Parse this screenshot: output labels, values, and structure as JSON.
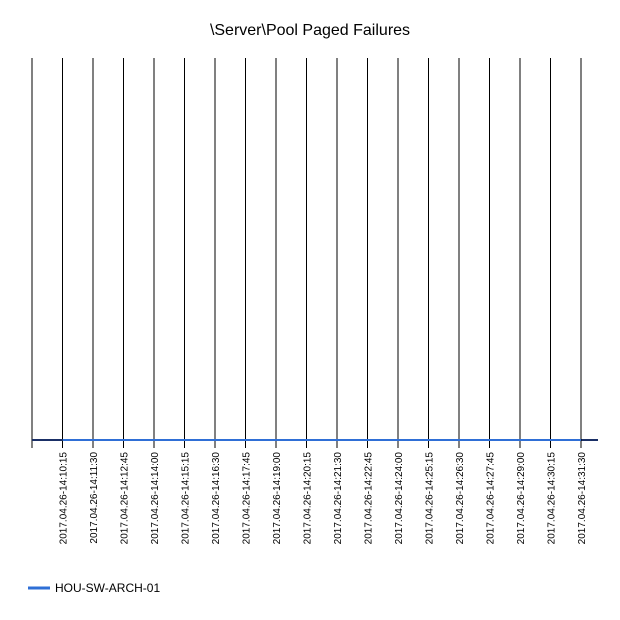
{
  "chart_data": {
    "type": "line",
    "title": "\\Server\\Pool Paged Failures",
    "categories": [
      "2017.04.26-14:10:15",
      "2017.04.26-14:11:30",
      "2017.04.26-14:12:45",
      "2017.04.26-14:14:00",
      "2017.04.26-14:15:15",
      "2017.04.26-14:16:30",
      "2017.04.26-14:17:45",
      "2017.04.26-14:19:00",
      "2017.04.26-14:20:15",
      "2017.04.26-14:21:30",
      "2017.04.26-14:22:45",
      "2017.04.26-14:24:00",
      "2017.04.26-14:25:15",
      "2017.04.26-14:26:30",
      "2017.04.26-14:27:45",
      "2017.04.26-14:29:00",
      "2017.04.26-14:30:15",
      "2017.04.26-14:31:30"
    ],
    "series": [
      {
        "name": "HOU-SW-ARCH-01",
        "color": "#2f6fd6",
        "values": [
          0,
          0,
          0,
          0,
          0,
          0,
          0,
          0,
          0,
          0,
          0,
          0,
          0,
          0,
          0,
          0,
          0,
          0
        ]
      }
    ],
    "ylim": [
      0,
      1
    ],
    "grid": true,
    "legend": "bottom-left"
  }
}
